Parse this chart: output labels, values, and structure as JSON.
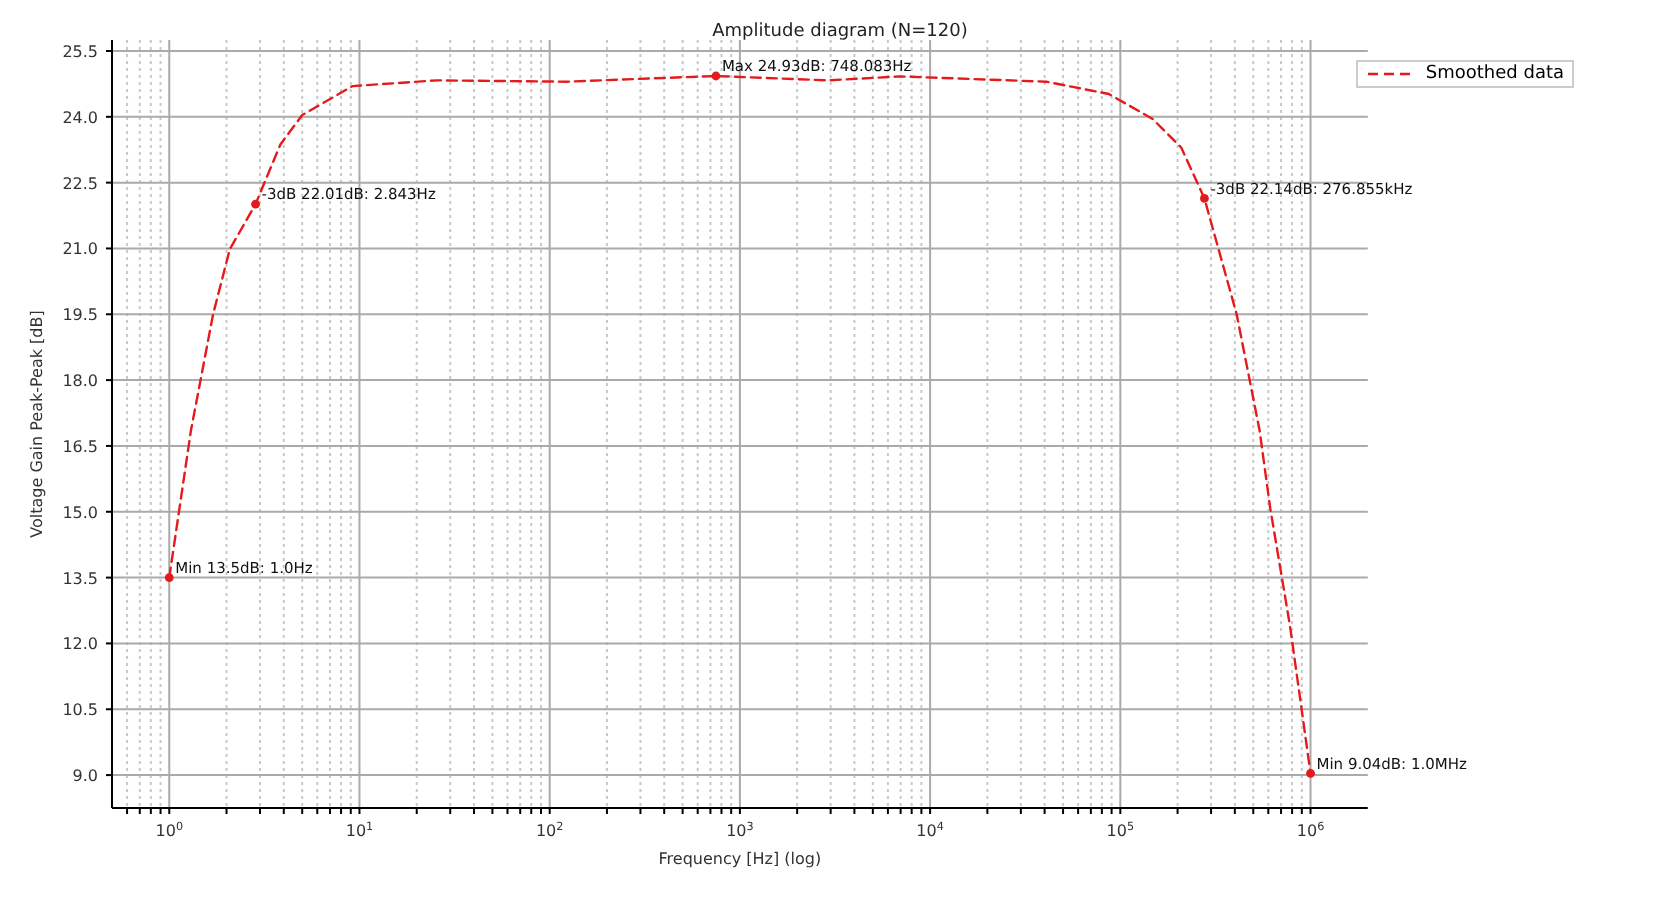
{
  "chart_data": {
    "type": "line",
    "title": "Amplitude diagram (N=120)",
    "xlabel": "Frequency [Hz] (log)",
    "ylabel": "Voltage Gain Peak-Peak [dB]",
    "log": "x",
    "grid": true,
    "legend": "top right",
    "line_style": "dashed",
    "marker": "none",
    "xlim": [
      0.5,
      2000000
    ],
    "ylim": [
      8.25,
      25.75
    ],
    "xticks": [
      {
        "value": 0.6,
        "label": null
      },
      {
        "value": 0.7,
        "label": null
      },
      {
        "value": 0.8,
        "label": null
      },
      {
        "value": 0.9,
        "label": null
      },
      {
        "value": 1,
        "label": "10$^{0}$"
      },
      {
        "value": 2,
        "label": null
      },
      {
        "value": 3,
        "label": null
      },
      {
        "value": 4,
        "label": null
      },
      {
        "value": 5,
        "label": null
      },
      {
        "value": 6,
        "label": null
      },
      {
        "value": 7,
        "label": null
      },
      {
        "value": 8,
        "label": null
      },
      {
        "value": 9,
        "label": null
      },
      {
        "value": 10,
        "label": "10$^{1}$"
      },
      {
        "value": 20,
        "label": null
      },
      {
        "value": 30,
        "label": null
      },
      {
        "value": 40,
        "label": null
      },
      {
        "value": 50,
        "label": null
      },
      {
        "value": 60,
        "label": null
      },
      {
        "value": 70,
        "label": null
      },
      {
        "value": 80,
        "label": null
      },
      {
        "value": 90,
        "label": null
      },
      {
        "value": 100,
        "label": "10$^{2}$"
      },
      {
        "value": 200,
        "label": null
      },
      {
        "value": 300,
        "label": null
      },
      {
        "value": 400,
        "label": null
      },
      {
        "value": 500,
        "label": null
      },
      {
        "value": 600,
        "label": null
      },
      {
        "value": 700,
        "label": null
      },
      {
        "value": 800,
        "label": null
      },
      {
        "value": 900,
        "label": null
      },
      {
        "value": 1000,
        "label": "10$^{3}$"
      },
      {
        "value": 2000,
        "label": null
      },
      {
        "value": 3000,
        "label": null
      },
      {
        "value": 4000,
        "label": null
      },
      {
        "value": 5000,
        "label": null
      },
      {
        "value": 6000,
        "label": null
      },
      {
        "value": 7000,
        "label": null
      },
      {
        "value": 8000,
        "label": null
      },
      {
        "value": 9000,
        "label": null
      },
      {
        "value": 10000,
        "label": "10$^{4}$"
      },
      {
        "value": 20000,
        "label": null
      },
      {
        "value": 30000,
        "label": null
      },
      {
        "value": 40000,
        "label": null
      },
      {
        "value": 50000,
        "label": null
      },
      {
        "value": 60000,
        "label": null
      },
      {
        "value": 70000,
        "label": null
      },
      {
        "value": 80000,
        "label": null
      },
      {
        "value": 90000,
        "label": null
      },
      {
        "value": 100000,
        "label": "10$^{5}$"
      },
      {
        "value": 200000,
        "label": null
      },
      {
        "value": 300000,
        "label": null
      },
      {
        "value": 400000,
        "label": null
      },
      {
        "value": 500000,
        "label": null
      },
      {
        "value": 600000,
        "label": null
      },
      {
        "value": 700000,
        "label": null
      },
      {
        "value": 800000,
        "label": null
      },
      {
        "value": 900000,
        "label": null
      },
      {
        "value": 1000000,
        "label": "10$^{6}$"
      }
    ],
    "yticks": [
      {
        "value": 9,
        "label": "9.0"
      },
      {
        "value": 10.5,
        "label": "10.5"
      },
      {
        "value": 12,
        "label": "12.0"
      },
      {
        "value": 13.5,
        "label": "13.5"
      },
      {
        "value": 15,
        "label": "15.0"
      },
      {
        "value": 16.5,
        "label": "16.5"
      },
      {
        "value": 18,
        "label": "18.0"
      },
      {
        "value": 19.5,
        "label": "19.5"
      },
      {
        "value": 21,
        "label": "21.0"
      },
      {
        "value": 22.5,
        "label": "22.5"
      },
      {
        "value": 24,
        "label": "24.0"
      },
      {
        "value": 25.5,
        "label": "25.5"
      }
    ],
    "series": [
      {
        "name": "Smoothed data",
        "color": "#e41a1c",
        "x": [
          1,
          1.3,
          1.7,
          2.08,
          2.843,
          3.84,
          5,
          9.2,
          25.5,
          122,
          748.083,
          2890,
          6930,
          40800,
          87000,
          148000,
          209000,
          276855,
          409000,
          540000,
          614000,
          780000,
          1000000
        ],
        "values": [
          13.5,
          16.85,
          19.5,
          20.98,
          22.01,
          23.37,
          24.04,
          24.7,
          24.83,
          24.8,
          24.93,
          24.83,
          24.92,
          24.8,
          24.52,
          23.95,
          23.3,
          22.14,
          19.5,
          16.85,
          15.08,
          12.4,
          9.04
        ]
      },
      {
        "type": "scatter",
        "color": "#e41a1c",
        "marker": "circle",
        "x": [
          1,
          2.843,
          748.083,
          276855,
          1000000
        ],
        "values": [
          13.5,
          22.01,
          24.93,
          22.14,
          9.04
        ]
      }
    ],
    "annotations": [
      {
        "text": "Min 13.5dB: 1.0Hz",
        "x": 1,
        "y": 13.5
      },
      {
        "text": "-3dB 22.01dB: 2.843Hz",
        "x": 2.843,
        "y": 22.01
      },
      {
        "text": "Max 24.93dB: 748.083Hz",
        "x": 748.083,
        "y": 24.93
      },
      {
        "text": "-3dB 22.14dB: 276.855kHz",
        "x": 276855,
        "y": 22.14
      },
      {
        "text": "Min 9.04dB: 1.0MHz",
        "x": 1000000,
        "y": 9.04
      }
    ]
  }
}
